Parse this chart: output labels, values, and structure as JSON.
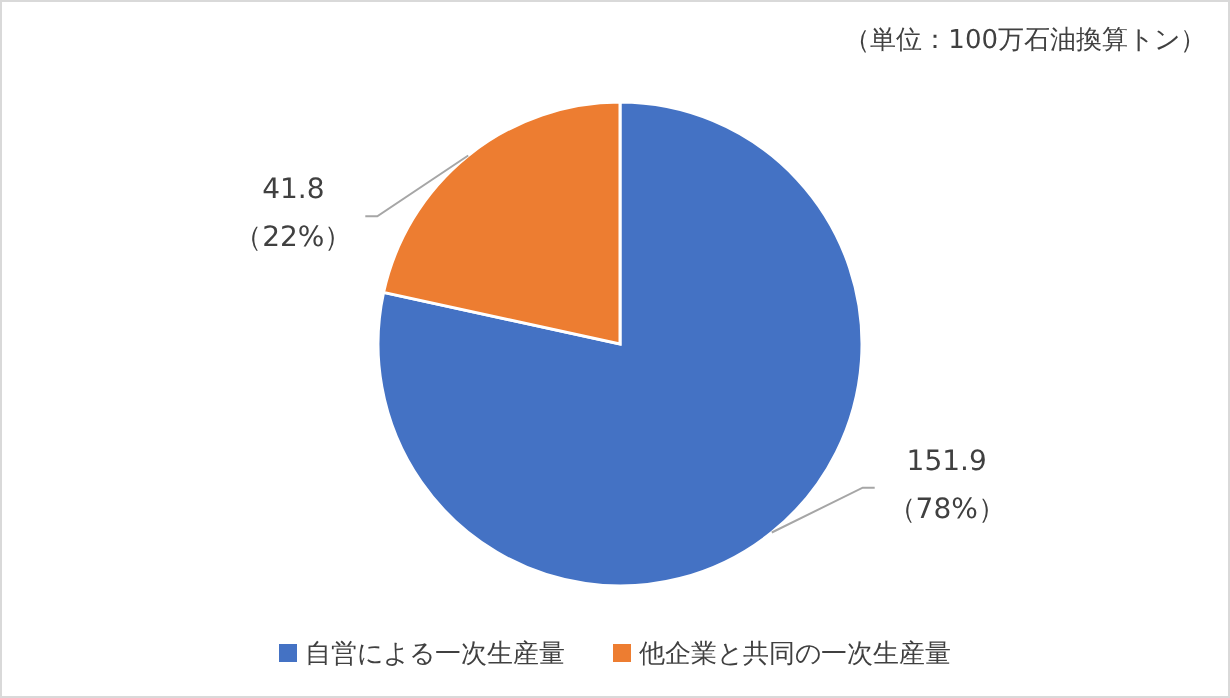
{
  "chart_data": {
    "type": "pie",
    "categories": [
      "自営による一次生産量",
      "他企業と共同の一次生産量"
    ],
    "values": [
      151.9,
      41.8
    ],
    "colors": [
      "#4472c4",
      "#ed7d31"
    ],
    "value_labels": [
      "151.9\n（78%）",
      "41.8\n（22%）"
    ],
    "annotations": [
      "（単位：100万石油換算トン）"
    ],
    "legend": "bottom"
  }
}
